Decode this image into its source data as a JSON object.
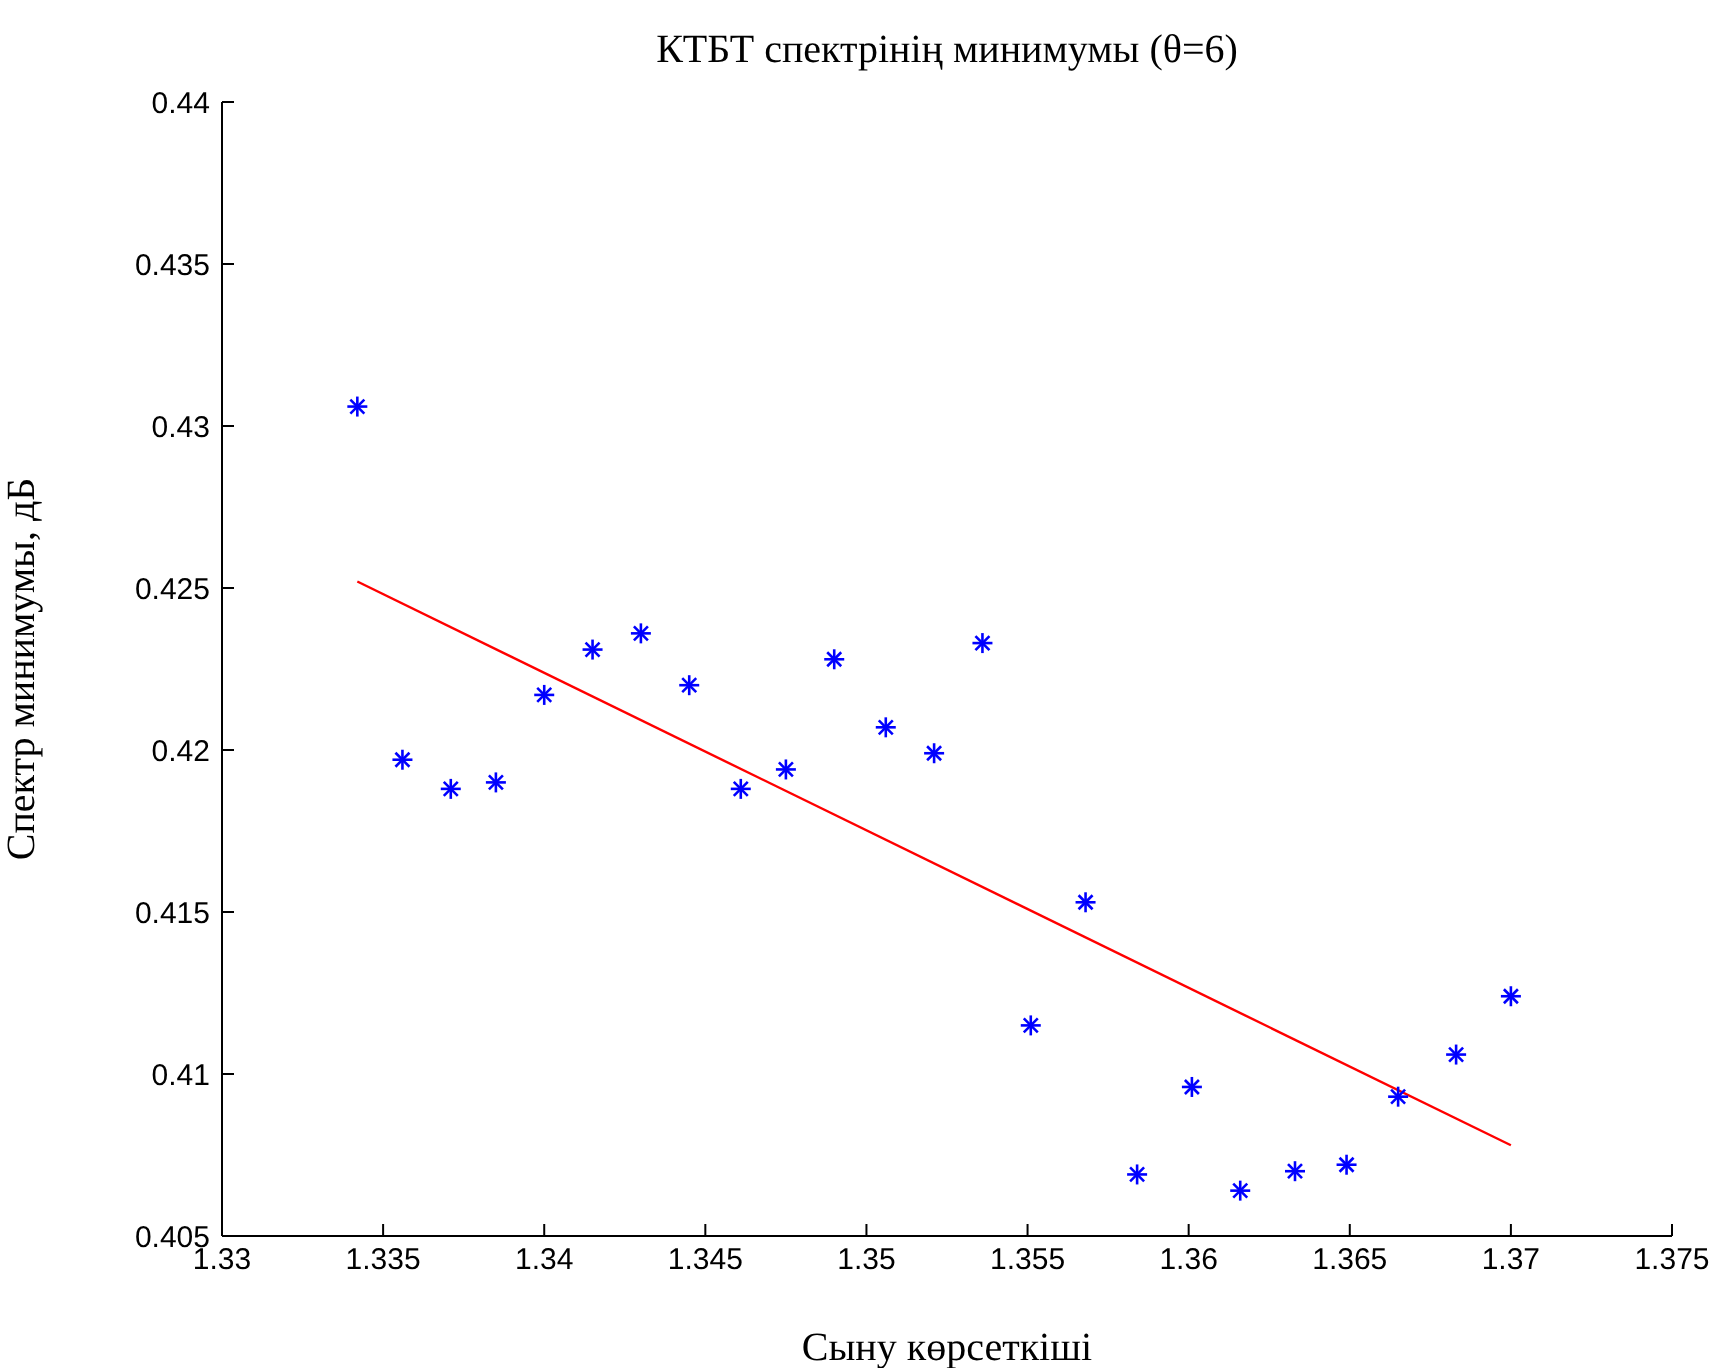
{
  "chart_data": {
    "type": "scatter",
    "title": "КТБТ спектрінің минимумы (θ=6)",
    "xlabel": "Сыну көрсеткіші",
    "ylabel": "Спектр минимумы, дБ",
    "xlim": [
      1.33,
      1.375
    ],
    "xticks": [
      1.33,
      1.335,
      1.34,
      1.345,
      1.35,
      1.355,
      1.36,
      1.365,
      1.37,
      1.375
    ],
    "ylim": [
      0.405,
      0.44
    ],
    "yticks": [
      0.405,
      0.41,
      0.415,
      0.42,
      0.425,
      0.43,
      0.435,
      0.44
    ],
    "grid": false,
    "legend": false,
    "series": [
      {
        "marker": "cross",
        "color": "#0000ff",
        "x": [
          1.3342,
          1.3356,
          1.3371,
          1.3385,
          1.34,
          1.3415,
          1.343,
          1.3445,
          1.3461,
          1.3475,
          1.349,
          1.3506,
          1.3521,
          1.3536,
          1.3551,
          1.3568,
          1.3584,
          1.3601,
          1.3616,
          1.3633,
          1.3649,
          1.3665,
          1.3683,
          1.37
        ],
        "values": [
          0.4306,
          0.4197,
          0.4188,
          0.419,
          0.4217,
          0.4231,
          0.4236,
          0.422,
          0.4188,
          0.4194,
          0.4228,
          0.4207,
          0.4199,
          0.4233,
          0.4115,
          0.4153,
          0.4069,
          0.4096,
          0.4064,
          0.407,
          0.4072,
          0.4093,
          0.4106,
          0.4124
        ]
      },
      {
        "type": "line",
        "color": "#ff0000",
        "x": [
          1.3342,
          1.37
        ],
        "values": [
          0.4252,
          0.4078
        ]
      }
    ]
  }
}
